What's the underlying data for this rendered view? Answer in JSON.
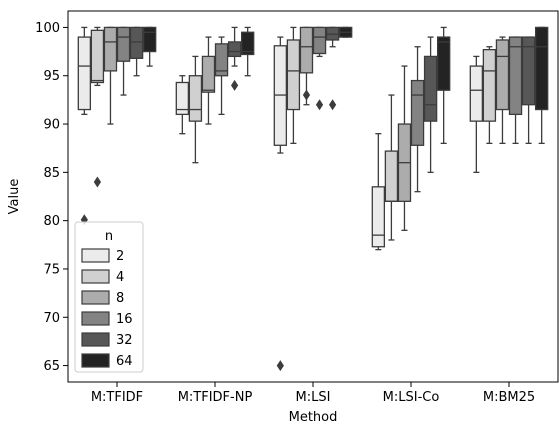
{
  "chart_data": {
    "type": "box",
    "xlabel": "Method",
    "ylabel": "Value",
    "ylim": [
      63.3,
      101.7
    ],
    "yticks": [
      65,
      70,
      75,
      80,
      85,
      90,
      95,
      100
    ],
    "categories": [
      "M:TFIDF",
      "M:TFIDF-NP",
      "M:LSI",
      "M:LSI-Co",
      "M:BM25"
    ],
    "legend": {
      "title": "n",
      "position": "lower-left",
      "entries": [
        "2",
        "4",
        "8",
        "16",
        "32",
        "64"
      ]
    },
    "series_colors": [
      "#ebebeb",
      "#d0d0d0",
      "#acacac",
      "#838383",
      "#575757",
      "#232323"
    ],
    "series": [
      {
        "name": "2",
        "boxes": [
          {
            "q1": 91.5,
            "median": 96.0,
            "q3": 99.0,
            "whisker_low": 91.0,
            "whisker_high": 100.0,
            "outliers": [
              80.1
            ]
          },
          {
            "q1": 91.0,
            "median": 91.5,
            "q3": 94.3,
            "whisker_low": 89.0,
            "whisker_high": 95.0,
            "outliers": []
          },
          {
            "q1": 87.8,
            "median": 93.0,
            "q3": 98.1,
            "whisker_low": 87.0,
            "whisker_high": 99.0,
            "outliers": [
              65.0
            ]
          },
          {
            "q1": 77.3,
            "median": 78.5,
            "q3": 83.5,
            "whisker_low": 77.0,
            "whisker_high": 89.0,
            "outliers": []
          },
          {
            "q1": 90.3,
            "median": 93.5,
            "q3": 96.0,
            "whisker_low": 85.0,
            "whisker_high": 97.0,
            "outliers": []
          }
        ]
      },
      {
        "name": "4",
        "boxes": [
          {
            "q1": 94.3,
            "median": 94.5,
            "q3": 99.7,
            "whisker_low": 94.0,
            "whisker_high": 100.0,
            "outliers": [
              84.0
            ]
          },
          {
            "q1": 90.3,
            "median": 91.5,
            "q3": 95.0,
            "whisker_low": 86.0,
            "whisker_high": 97.0,
            "outliers": []
          },
          {
            "q1": 91.5,
            "median": 95.5,
            "q3": 98.7,
            "whisker_low": 88.0,
            "whisker_high": 100.0,
            "outliers": []
          },
          {
            "q1": 82.0,
            "median": 82.0,
            "q3": 87.2,
            "whisker_low": 78.0,
            "whisker_high": 93.0,
            "outliers": []
          },
          {
            "q1": 90.3,
            "median": 95.5,
            "q3": 97.7,
            "whisker_low": 88.0,
            "whisker_high": 98.0,
            "outliers": []
          }
        ]
      },
      {
        "name": "8",
        "boxes": [
          {
            "q1": 95.5,
            "median": 98.5,
            "q3": 100.0,
            "whisker_low": 90.0,
            "whisker_high": 100.0,
            "outliers": []
          },
          {
            "q1": 93.3,
            "median": 93.5,
            "q3": 97.0,
            "whisker_low": 90.0,
            "whisker_high": 99.0,
            "outliers": []
          },
          {
            "q1": 95.3,
            "median": 98.0,
            "q3": 100.0,
            "whisker_low": 92.0,
            "whisker_high": 100.0,
            "outliers": [
              93.0
            ]
          },
          {
            "q1": 82.0,
            "median": 86.0,
            "q3": 90.0,
            "whisker_low": 79.0,
            "whisker_high": 96.0,
            "outliers": []
          },
          {
            "q1": 91.5,
            "median": 97.0,
            "q3": 98.7,
            "whisker_low": 88.0,
            "whisker_high": 99.0,
            "outliers": []
          }
        ]
      },
      {
        "name": "16",
        "boxes": [
          {
            "q1": 96.5,
            "median": 99.0,
            "q3": 100.0,
            "whisker_low": 93.0,
            "whisker_high": 100.0,
            "outliers": []
          },
          {
            "q1": 95.0,
            "median": 95.5,
            "q3": 98.3,
            "whisker_low": 91.0,
            "whisker_high": 99.0,
            "outliers": []
          },
          {
            "q1": 97.3,
            "median": 99.0,
            "q3": 100.0,
            "whisker_low": 97.0,
            "whisker_high": 100.0,
            "outliers": [
              92.0
            ]
          },
          {
            "q1": 87.8,
            "median": 93.0,
            "q3": 94.5,
            "whisker_low": 83.0,
            "whisker_high": 98.0,
            "outliers": []
          },
          {
            "q1": 91.0,
            "median": 98.0,
            "q3": 99.0,
            "whisker_low": 88.0,
            "whisker_high": 99.0,
            "outliers": []
          }
        ]
      },
      {
        "name": "32",
        "boxes": [
          {
            "q1": 96.8,
            "median": 98.5,
            "q3": 100.0,
            "whisker_low": 95.0,
            "whisker_high": 100.0,
            "outliers": []
          },
          {
            "q1": 97.0,
            "median": 97.5,
            "q3": 98.5,
            "whisker_low": 96.0,
            "whisker_high": 100.0,
            "outliers": [
              94.0
            ]
          },
          {
            "q1": 98.7,
            "median": 99.3,
            "q3": 100.0,
            "whisker_low": 98.0,
            "whisker_high": 100.0,
            "outliers": [
              92.0
            ]
          },
          {
            "q1": 90.3,
            "median": 92.0,
            "q3": 97.0,
            "whisker_low": 85.0,
            "whisker_high": 99.0,
            "outliers": []
          },
          {
            "q1": 92.0,
            "median": 98.0,
            "q3": 99.0,
            "whisker_low": 88.0,
            "whisker_high": 99.0,
            "outliers": []
          }
        ]
      },
      {
        "name": "64",
        "boxes": [
          {
            "q1": 97.5,
            "median": 99.5,
            "q3": 100.0,
            "whisker_low": 96.0,
            "whisker_high": 100.0,
            "outliers": []
          },
          {
            "q1": 97.2,
            "median": 97.5,
            "q3": 99.5,
            "whisker_low": 95.0,
            "whisker_high": 100.0,
            "outliers": []
          },
          {
            "q1": 99.0,
            "median": 99.5,
            "q3": 100.0,
            "whisker_low": 99.0,
            "whisker_high": 100.0,
            "outliers": []
          },
          {
            "q1": 93.5,
            "median": 98.5,
            "q3": 99.0,
            "whisker_low": 88.0,
            "whisker_high": 100.0,
            "outliers": []
          },
          {
            "q1": 91.5,
            "median": 98.0,
            "q3": 100.0,
            "whisker_low": 88.0,
            "whisker_high": 100.0,
            "outliers": []
          }
        ]
      }
    ]
  }
}
